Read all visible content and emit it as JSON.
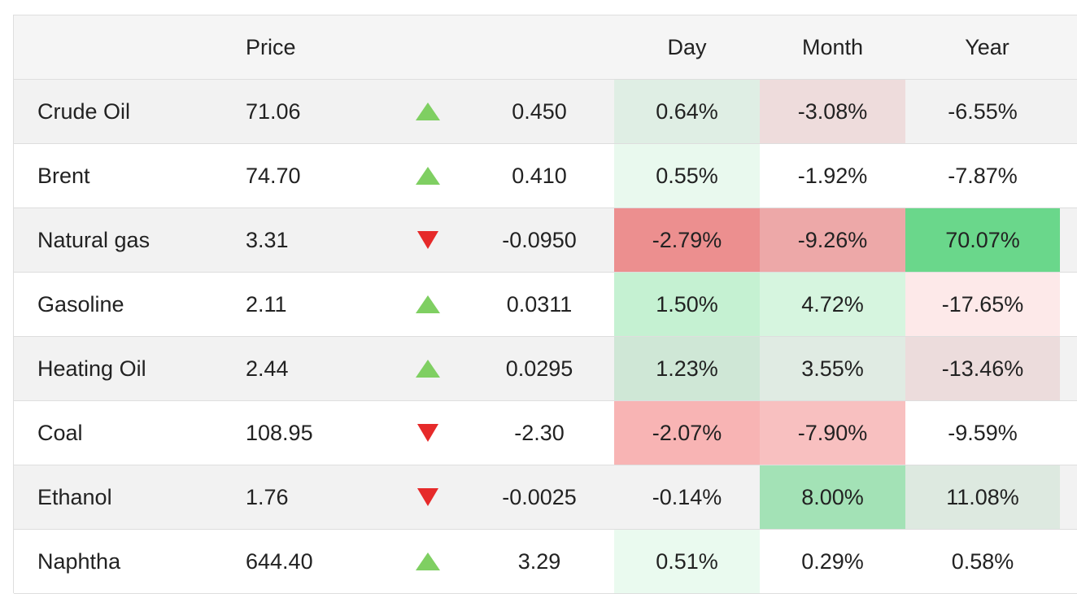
{
  "headers": {
    "name": "",
    "price": "Price",
    "arrow": "",
    "change": "",
    "day": "Day",
    "month": "Month",
    "year": "Year"
  },
  "rows": [
    {
      "name": "Crude Oil",
      "price": "71.06",
      "direction": "up",
      "change": "0.450",
      "day": "0.64%",
      "month": "-3.08%",
      "year": "-6.55%",
      "day_bg": "#dfeee4",
      "month_bg": "#eedcdc",
      "year_bg": "transparent"
    },
    {
      "name": "Brent",
      "price": "74.70",
      "direction": "up",
      "change": "0.410",
      "day": "0.55%",
      "month": "-1.92%",
      "year": "-7.87%",
      "day_bg": "#e9f9ee",
      "month_bg": "transparent",
      "year_bg": "transparent"
    },
    {
      "name": "Natural gas",
      "price": "3.31",
      "direction": "down",
      "change": "-0.0950",
      "day": "-2.79%",
      "month": "-9.26%",
      "year": "70.07%",
      "day_bg": "#ec8f8f",
      "month_bg": "#eda8a8",
      "year_bg": "#6ad78b"
    },
    {
      "name": "Gasoline",
      "price": "2.11",
      "direction": "up",
      "change": "0.0311",
      "day": "1.50%",
      "month": "4.72%",
      "year": "-17.65%",
      "day_bg": "#c5f1d2",
      "month_bg": "#d6f5df",
      "year_bg": "#fde9e9"
    },
    {
      "name": "Heating Oil",
      "price": "2.44",
      "direction": "up",
      "change": "0.0295",
      "day": "1.23%",
      "month": "3.55%",
      "year": "-13.46%",
      "day_bg": "#cfe7d6",
      "month_bg": "#e0ebe3",
      "year_bg": "#ecdcdc"
    },
    {
      "name": "Coal",
      "price": "108.95",
      "direction": "down",
      "change": "-2.30",
      "day": "-2.07%",
      "month": "-7.90%",
      "year": "-9.59%",
      "day_bg": "#f8b4b4",
      "month_bg": "#f8c0c0",
      "year_bg": "transparent"
    },
    {
      "name": "Ethanol",
      "price": "1.76",
      "direction": "down",
      "change": "-0.0025",
      "day": "-0.14%",
      "month": "8.00%",
      "year": "11.08%",
      "day_bg": "transparent",
      "month_bg": "#a3e2b6",
      "year_bg": "#dde9e0"
    },
    {
      "name": "Naphtha",
      "price": "644.40",
      "direction": "up",
      "change": "3.29",
      "day": "0.51%",
      "month": "0.29%",
      "year": "0.58%",
      "day_bg": "#eafaef",
      "month_bg": "transparent",
      "year_bg": "transparent"
    }
  ],
  "colors": {
    "up_arrow": "#7fcf62",
    "down_arrow": "#e62a2a",
    "row_alt": "#f2f2f2",
    "border": "#dedede"
  }
}
